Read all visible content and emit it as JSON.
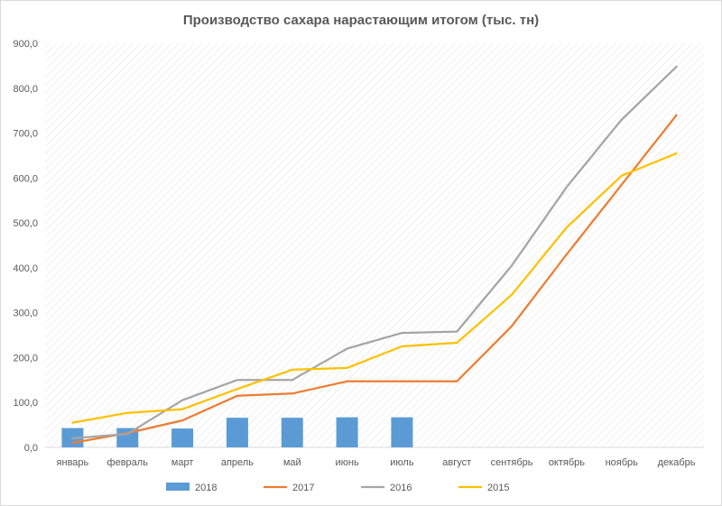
{
  "chart_data": {
    "type": "bar+line",
    "title": "Производство сахара нарастающим итогом (тыс. тн)",
    "categories": [
      "январь",
      "февраль",
      "март",
      "апрель",
      "май",
      "июнь",
      "июль",
      "август",
      "сентябрь",
      "октябрь",
      "ноябрь",
      "декабрь"
    ],
    "ylim": [
      0,
      900
    ],
    "yticks": [
      "0,0",
      "100,0",
      "200,0",
      "300,0",
      "400,0",
      "500,0",
      "600,0",
      "700,0",
      "800,0",
      "900,0"
    ],
    "legend_position": "bottom",
    "grid": "diagonal-hatched plot area",
    "series": [
      {
        "name": "2018",
        "type": "bar",
        "color": "#5b9bd5",
        "values": [
          43,
          43,
          42,
          66,
          66,
          67,
          67,
          null,
          null,
          null,
          null,
          null
        ]
      },
      {
        "name": "2017",
        "type": "line",
        "color": "#ed7d31",
        "values": [
          10,
          32,
          60,
          115,
          120,
          147,
          147,
          147,
          270,
          430,
          585,
          740
        ]
      },
      {
        "name": "2016",
        "type": "line",
        "color": "#a5a5a5",
        "values": [
          20,
          30,
          105,
          150,
          150,
          220,
          255,
          258,
          405,
          580,
          730,
          848
        ]
      },
      {
        "name": "2015",
        "type": "line",
        "color": "#ffc000",
        "values": [
          55,
          77,
          85,
          130,
          173,
          177,
          225,
          233,
          340,
          490,
          605,
          655
        ]
      }
    ]
  }
}
